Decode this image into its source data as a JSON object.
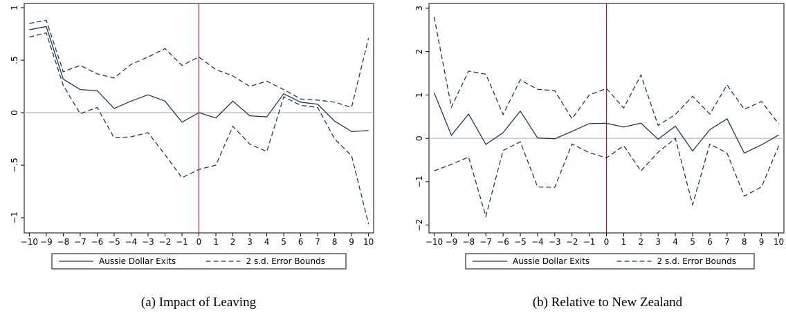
{
  "chart_data": [
    {
      "type": "line",
      "caption": "(a) Impact of Leaving",
      "x": [
        -10,
        -9,
        -8,
        -7,
        -6,
        -5,
        -4,
        -3,
        -2,
        -1,
        0,
        1,
        2,
        3,
        4,
        5,
        6,
        7,
        8,
        9,
        10
      ],
      "xlim": [
        -10.3,
        10.3
      ],
      "xticks": [
        {
          "value": -10,
          "label": "−10"
        },
        {
          "value": -9,
          "label": "−9"
        },
        {
          "value": -8,
          "label": "−8"
        },
        {
          "value": -7,
          "label": "−7"
        },
        {
          "value": -6,
          "label": "−6"
        },
        {
          "value": -5,
          "label": "−5"
        },
        {
          "value": -4,
          "label": "−4"
        },
        {
          "value": -3,
          "label": "−3"
        },
        {
          "value": -2,
          "label": "−2"
        },
        {
          "value": -1,
          "label": "−1"
        },
        0,
        1,
        2,
        3,
        4,
        5,
        6,
        7,
        8,
        9,
        10
      ],
      "ylim": [
        -1.145,
        1.04
      ],
      "yticks": [
        {
          "value": -1,
          "label": "−1"
        },
        {
          "value": -0.5,
          "label": "−.5"
        },
        0,
        {
          "value": 0.5,
          "label": ".5"
        },
        1
      ],
      "vline": 0,
      "vline_color": "#b0123a",
      "hline": 0,
      "hline_color": "#b8b8b8",
      "series": [
        {
          "name": "Aussie Dollar Exits",
          "color": "#1a3a5c",
          "dash": false,
          "values": [
            0.79,
            0.82,
            0.32,
            0.22,
            0.21,
            0.04,
            0.11,
            0.17,
            0.11,
            -0.09,
            0.0,
            -0.05,
            0.11,
            -0.03,
            -0.04,
            0.18,
            0.1,
            0.08,
            -0.08,
            -0.18,
            -0.17
          ]
        },
        {
          "name": "2 s.d. Error Bounds",
          "color": "#1a3a5c",
          "dash": true,
          "values": [
            0.85,
            0.88,
            0.39,
            0.45,
            0.37,
            0.33,
            0.46,
            0.53,
            0.61,
            0.45,
            0.53,
            0.41,
            0.35,
            0.25,
            0.3,
            0.22,
            0.13,
            0.12,
            0.1,
            0.05,
            0.71
          ],
          "lower": [
            0.72,
            0.76,
            0.26,
            -0.01,
            0.05,
            -0.24,
            -0.23,
            -0.19,
            -0.4,
            -0.62,
            -0.54,
            -0.5,
            -0.13,
            -0.3,
            -0.37,
            0.15,
            0.07,
            0.05,
            -0.25,
            -0.41,
            -1.06
          ]
        }
      ]
    },
    {
      "type": "line",
      "caption": "(b) Relative to New Zealand",
      "x": [
        -10,
        -9,
        -8,
        -7,
        -6,
        -5,
        -4,
        -3,
        -2,
        -1,
        0,
        1,
        2,
        3,
        4,
        5,
        6,
        7,
        8,
        9,
        10
      ],
      "xlim": [
        -10.3,
        10.3
      ],
      "xticks": [
        {
          "value": -10,
          "label": "−10"
        },
        {
          "value": -9,
          "label": "−9"
        },
        {
          "value": -8,
          "label": "−8"
        },
        {
          "value": -7,
          "label": "−7"
        },
        {
          "value": -6,
          "label": "−6"
        },
        {
          "value": -5,
          "label": "−5"
        },
        {
          "value": -4,
          "label": "−4"
        },
        {
          "value": -3,
          "label": "−3"
        },
        {
          "value": -2,
          "label": "−2"
        },
        {
          "value": -1,
          "label": "−1"
        },
        0,
        1,
        2,
        3,
        4,
        5,
        6,
        7,
        8,
        9,
        10
      ],
      "ylim": [
        -2.18,
        3.11
      ],
      "yticks": [
        {
          "value": -2,
          "label": "−2"
        },
        {
          "value": -1,
          "label": "−1"
        },
        0,
        1,
        2,
        3
      ],
      "vline": 0,
      "vline_color": "#b0123a",
      "hline": 0,
      "hline_color": "#b8b8b8",
      "series": [
        {
          "name": "Aussie Dollar Exits",
          "color": "#1a3a5c",
          "dash": false,
          "values": [
            1.05,
            0.07,
            0.56,
            -0.14,
            0.13,
            0.63,
            0.01,
            -0.01,
            0.16,
            0.34,
            0.35,
            0.26,
            0.35,
            -0.02,
            0.28,
            -0.29,
            0.2,
            0.45,
            -0.34,
            -0.15,
            0.08
          ]
        },
        {
          "name": "2 s.d. Error Bounds",
          "color": "#1a3a5c",
          "dash": true,
          "values": [
            2.8,
            0.72,
            1.55,
            1.48,
            0.55,
            1.35,
            1.13,
            1.1,
            0.45,
            1.0,
            1.15,
            0.7,
            1.46,
            0.3,
            0.55,
            0.97,
            0.56,
            1.23,
            0.67,
            0.85,
            0.33
          ],
          "lower": [
            -0.75,
            -0.6,
            -0.43,
            -1.8,
            -0.28,
            -0.08,
            -1.12,
            -1.13,
            -0.13,
            -0.33,
            -0.45,
            -0.17,
            -0.75,
            -0.32,
            0.0,
            -1.53,
            -0.13,
            -0.34,
            -1.33,
            -1.12,
            -0.17
          ]
        }
      ]
    }
  ]
}
